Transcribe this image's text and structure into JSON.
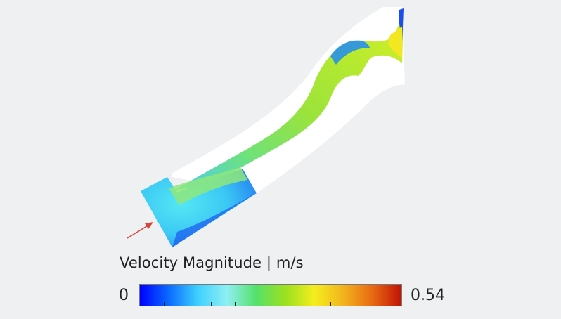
{
  "legend": {
    "title": "Velocity Magnitude | m/s",
    "min_label": "0",
    "max_label": "0.54",
    "range": [
      0,
      0.54
    ],
    "colormap": [
      "#0000ff",
      "#0a6cff",
      "#3fd0ff",
      "#8ef0f2",
      "#55e06a",
      "#9be01f",
      "#f4ee1e",
      "#f2b41e",
      "#e86a12",
      "#c01205"
    ]
  },
  "colors": {
    "background": "#eff0f2",
    "wall": "#ffffff",
    "inlet_arrow": "#d9453b"
  },
  "icons": {
    "inlet_arrow": "arrow-icon"
  }
}
